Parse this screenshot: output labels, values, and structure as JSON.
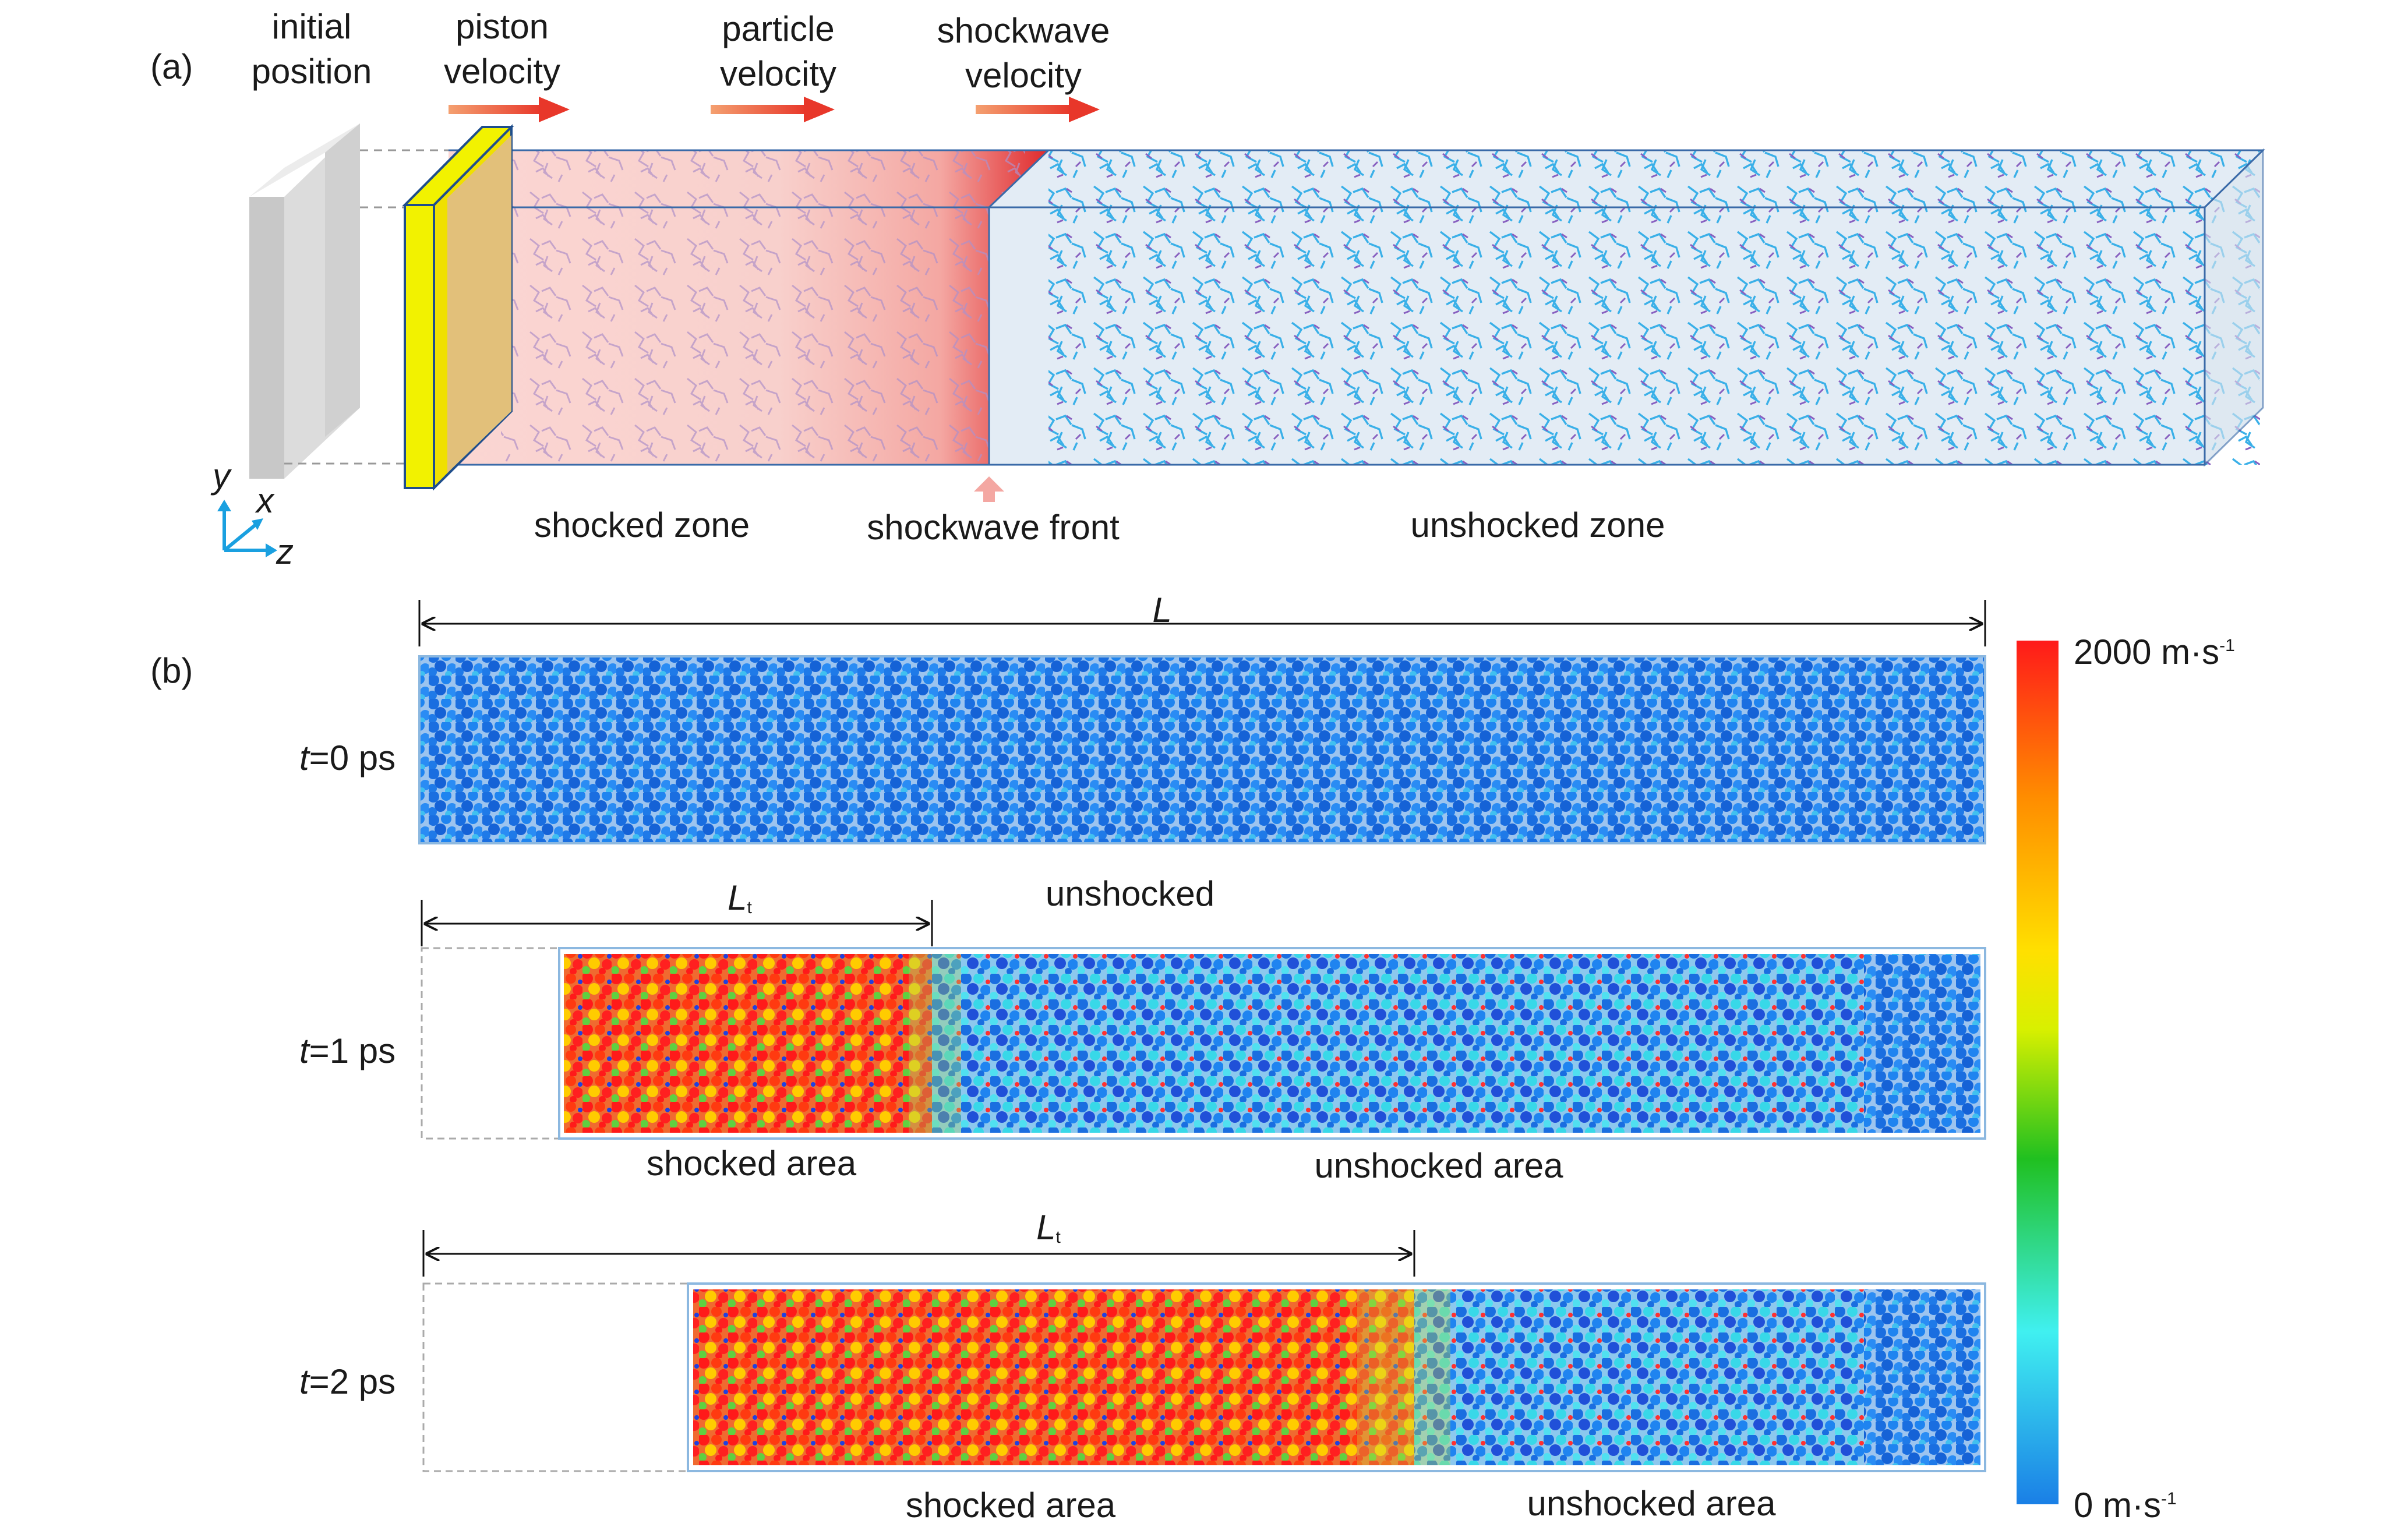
{
  "panel_a": {
    "label": "(a)",
    "initial_position": [
      "initial",
      "position"
    ],
    "piston_velocity": [
      "piston",
      "velocity"
    ],
    "particle_velocity": [
      "particle",
      "velocity"
    ],
    "shockwave_velocity": [
      "shockwave",
      "velocity"
    ],
    "shocked_zone": "shocked zone",
    "shockwave_front": "shockwave front",
    "unshocked_zone": "unshocked zone",
    "axes": {
      "y": "y",
      "x": "x",
      "z": "z"
    }
  },
  "panel_b": {
    "label": "(b)",
    "length_label": "L",
    "lt_label": "L",
    "lt_sub": "t",
    "unshocked": "unshocked",
    "rows": [
      {
        "time_var": "t",
        "time_rest": "=0 ps"
      },
      {
        "time_var": "t",
        "time_rest": "=1 ps",
        "shocked": "shocked area",
        "unshocked": "unshocked area"
      },
      {
        "time_var": "t",
        "time_rest": "=2 ps",
        "shocked": "shocked area",
        "unshocked": "unshocked area"
      }
    ],
    "colorbar": {
      "max_label": "2000 m·s",
      "min_label": "0 m·s",
      "unit_exp": "-1",
      "colors": [
        "#ff1a1a",
        "#ff8c00",
        "#ffe000",
        "#d8f000",
        "#20c020",
        "#40f0f0",
        "#1a7fe6"
      ]
    }
  }
}
